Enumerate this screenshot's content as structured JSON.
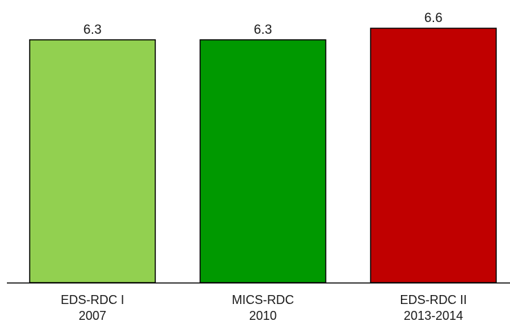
{
  "chart_data": {
    "type": "bar",
    "categories": [
      [
        "EDS-RDC I",
        "2007"
      ],
      [
        "MICS-RDC",
        "2010"
      ],
      [
        "EDS-RDC II",
        "2013-2014"
      ]
    ],
    "values": [
      6.3,
      6.3,
      6.6
    ],
    "value_labels": [
      "6.3",
      "6.3",
      "6.6"
    ],
    "colors": [
      "#92d050",
      "#009900",
      "#c00000"
    ],
    "ylim": [
      0,
      6.6
    ],
    "title": "",
    "xlabel": "",
    "ylabel": "",
    "grid": false,
    "legend": "none"
  }
}
